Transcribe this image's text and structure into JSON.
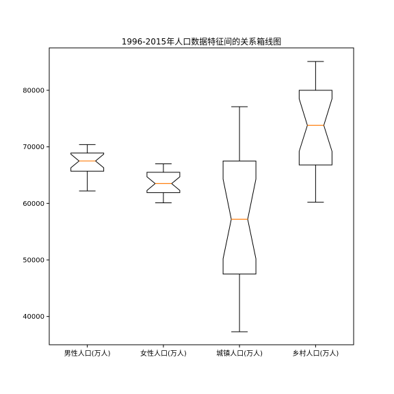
{
  "chart_data": {
    "type": "boxplot",
    "title": "1996-2015年人口数据特征间的关系箱线图",
    "categories": [
      "男性人口(万人)",
      "女性人口(万人)",
      "城镇人口(万人)",
      "乡村人口(万人)"
    ],
    "boxes": [
      {
        "whislo": 62200,
        "q1": 65700,
        "med": 67500,
        "q3": 68900,
        "whishi": 70400,
        "notch_lo": 66300,
        "notch_hi": 68700
      },
      {
        "whislo": 60100,
        "q1": 61900,
        "med": 63500,
        "q3": 65500,
        "whishi": 67000,
        "notch_lo": 62300,
        "notch_hi": 64700
      },
      {
        "whislo": 37300,
        "q1": 47500,
        "med": 57200,
        "q3": 67500,
        "whishi": 77100,
        "notch_lo": 50200,
        "notch_hi": 64300
      },
      {
        "whislo": 60200,
        "q1": 66800,
        "med": 73800,
        "q3": 80000,
        "whishi": 85100,
        "notch_lo": 69200,
        "notch_hi": 78500
      }
    ],
    "yticks": [
      40000,
      50000,
      60000,
      70000,
      80000
    ],
    "ylim": [
      35000,
      87500
    ],
    "median_color": "#ff7f0e",
    "box_color": "#000000",
    "notched": true
  }
}
